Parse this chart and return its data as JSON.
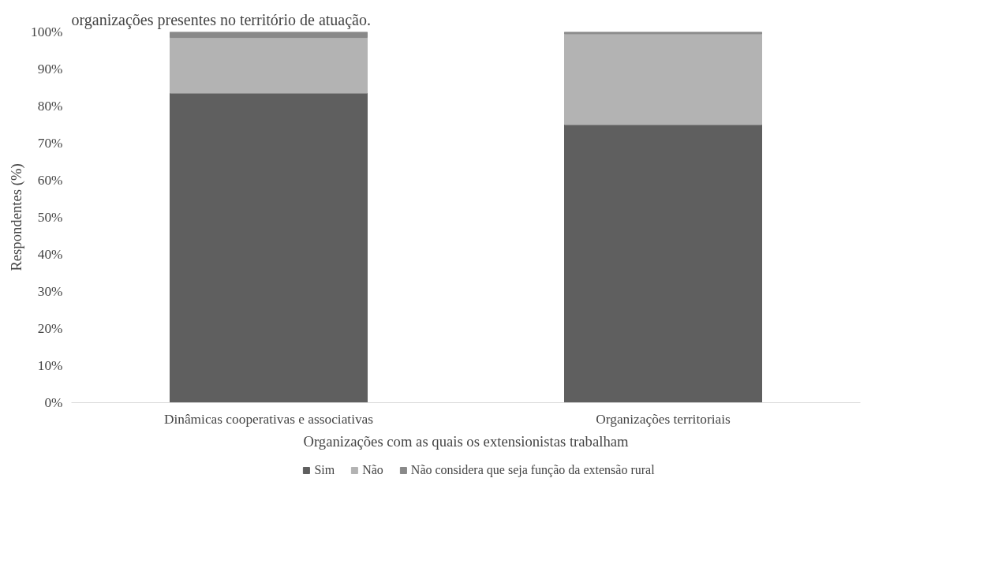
{
  "chart_data": {
    "type": "bar",
    "stacked": true,
    "categories": [
      "Dinâmicas cooperativas e associativas",
      "Organizações territoriais"
    ],
    "series": [
      {
        "name": "Sim",
        "color": "#5f5f5f",
        "values": [
          83.5,
          75
        ]
      },
      {
        "name": "Não",
        "color": "#b3b3b3",
        "values": [
          15,
          24.5
        ]
      },
      {
        "name": "Não considera que seja função da extensão rural",
        "color": "#898989",
        "values": [
          1.5,
          0.5
        ]
      }
    ],
    "xlabel": "Organizações com as quais os extensionistas trabalham",
    "ylabel": "Respondentes (%)",
    "ylim": [
      0,
      100
    ],
    "yticks": [
      {
        "value": 0,
        "label": "0%"
      },
      {
        "value": 10,
        "label": "10%"
      },
      {
        "value": 20,
        "label": "20%"
      },
      {
        "value": 30,
        "label": "30%"
      },
      {
        "value": 40,
        "label": "40%"
      },
      {
        "value": 50,
        "label": "50%"
      },
      {
        "value": 60,
        "label": "60%"
      },
      {
        "value": 70,
        "label": "70%"
      },
      {
        "value": 80,
        "label": "80%"
      },
      {
        "value": 90,
        "label": "90%"
      },
      {
        "value": 100,
        "label": "100%"
      }
    ],
    "grid": false,
    "legend": "bottom",
    "annotations": [
      "organizações presentes no território de atuação."
    ]
  }
}
